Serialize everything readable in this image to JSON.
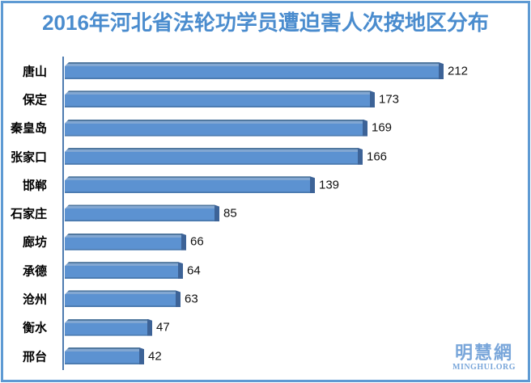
{
  "title": "2016年河北省法轮功学员遭迫害人次按地区分布",
  "watermark": {
    "cn": "明慧網",
    "en": "MINGHUI.ORG"
  },
  "colors": {
    "title_blue": "#4a8cce",
    "border_blue": "#5e9ad3",
    "bar_body": "#5c92d1",
    "bar_top_edge": "#50789f",
    "bar_highlight": "#82a7d2",
    "bar_end_cap": "#3d6397",
    "axis_line": "#4e7bb0",
    "label_text": "#000000",
    "watermark_blue": "#79a6da",
    "background": "#ffffff"
  },
  "chart_data": {
    "type": "bar",
    "orientation": "horizontal",
    "title": "2016年河北省法轮功学员遭迫害人次按地区分布",
    "categories": [
      "唐山",
      "保定",
      "秦皇岛",
      "张家口",
      "邯郸",
      "石家庄",
      "廊坊",
      "承德",
      "沧州",
      "衡水",
      "邢台"
    ],
    "values": [
      212,
      173,
      169,
      166,
      139,
      85,
      66,
      64,
      63,
      47,
      42
    ],
    "xlabel": "",
    "ylabel": "",
    "xlim": [
      0,
      212
    ],
    "grid": false,
    "legend": false,
    "value_labels": true,
    "bar_style": "3d-bevel-blue",
    "source_watermark": "明慧網 MINGHUI.ORG"
  }
}
